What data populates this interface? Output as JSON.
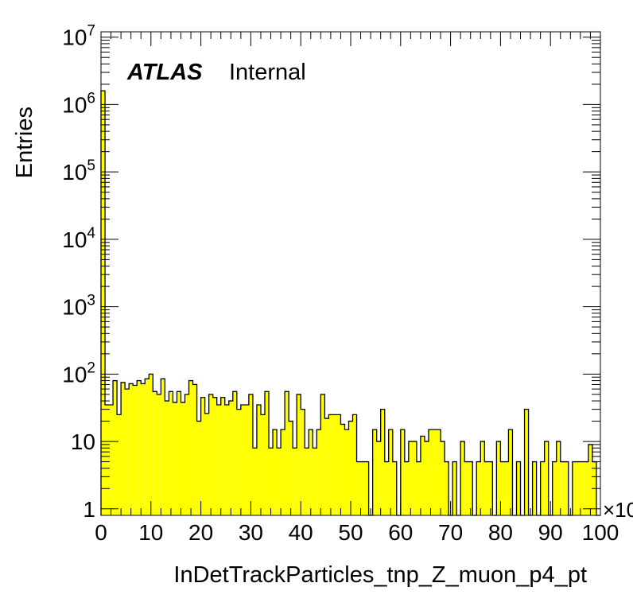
{
  "chart_data": {
    "type": "histogram",
    "xlabel": "InDetTrackParticles_tnp_Z_muon_p4_pt",
    "ylabel": "Entries",
    "x_multiplier_label": "×10",
    "atlas_label": "ATLAS",
    "atlas_sublabel": "Internal",
    "xlim": [
      0,
      100
    ],
    "ylim": [
      0.8,
      12000000
    ],
    "yscale": "log",
    "bin_width": 0.8,
    "x_ticks": [
      "0",
      "10",
      "20",
      "30",
      "40",
      "50",
      "60",
      "70",
      "80",
      "90",
      "100"
    ],
    "x_tick_values": [
      0,
      10,
      20,
      30,
      40,
      50,
      60,
      70,
      80,
      90,
      100
    ],
    "y_ticks": [
      {
        "value": 1,
        "base": "1",
        "exp": ""
      },
      {
        "value": 10,
        "base": "10",
        "exp": ""
      },
      {
        "value": 100,
        "base": "10",
        "exp": "2"
      },
      {
        "value": 1000,
        "base": "10",
        "exp": "3"
      },
      {
        "value": 10000,
        "base": "10",
        "exp": "4"
      },
      {
        "value": 100000,
        "base": "10",
        "exp": "5"
      },
      {
        "value": 1000000,
        "base": "10",
        "exp": "6"
      },
      {
        "value": 10000000,
        "base": "10",
        "exp": "7"
      }
    ],
    "fill_color": "#ffff00",
    "line_color": "#000000",
    "values": [
      1600000,
      35,
      35,
      80,
      25,
      75,
      60,
      72,
      68,
      80,
      72,
      85,
      100,
      55,
      50,
      85,
      40,
      55,
      38,
      55,
      38,
      50,
      80,
      70,
      20,
      45,
      26,
      50,
      45,
      35,
      45,
      35,
      40,
      55,
      30,
      35,
      35,
      50,
      8,
      35,
      25,
      55,
      8,
      15,
      8,
      15,
      55,
      20,
      8,
      50,
      30,
      8,
      15,
      8,
      15,
      50,
      22,
      25,
      25,
      25,
      18,
      15,
      20,
      25,
      5,
      5,
      5,
      0,
      15,
      10,
      30,
      5,
      15,
      5,
      0,
      15,
      5,
      10,
      10,
      5,
      12,
      10,
      15,
      15,
      15,
      10,
      5,
      0,
      5,
      0,
      10,
      5,
      5,
      0,
      5,
      10,
      5,
      5,
      0,
      10,
      5,
      5,
      15,
      0,
      5,
      0,
      30,
      0,
      5,
      0,
      5,
      10,
      0,
      5,
      10,
      5,
      5,
      0,
      5,
      5,
      5,
      5,
      9,
      5,
      0
    ]
  }
}
